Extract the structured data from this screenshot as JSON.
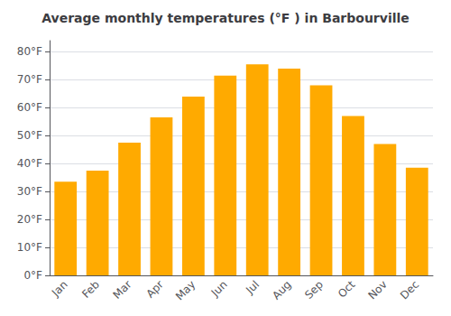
{
  "chart_data": {
    "type": "bar",
    "title": "Average monthly temperatures (°F ) in Barbourville",
    "categories": [
      "Jan",
      "Feb",
      "Mar",
      "Apr",
      "May",
      "Jun",
      "Jul",
      "Aug",
      "Sep",
      "Oct",
      "Nov",
      "Dec"
    ],
    "values": [
      33.5,
      37.5,
      47.5,
      56.5,
      64.0,
      71.5,
      75.5,
      74.0,
      68.0,
      57.0,
      47.0,
      38.5
    ],
    "color": "#FFAA00",
    "ylim": [
      0,
      84
    ],
    "yticks": [
      {
        "value": 0,
        "label": "0°F"
      },
      {
        "value": 10,
        "label": "10°F"
      },
      {
        "value": 20,
        "label": "20°F"
      },
      {
        "value": 30,
        "label": "30°F"
      },
      {
        "value": 40,
        "label": "40°F"
      },
      {
        "value": 50,
        "label": "50°F"
      },
      {
        "value": 60,
        "label": "60°F"
      },
      {
        "value": 70,
        "label": "70°F"
      },
      {
        "value": 80,
        "label": "80°F"
      }
    ],
    "grid": true
  }
}
